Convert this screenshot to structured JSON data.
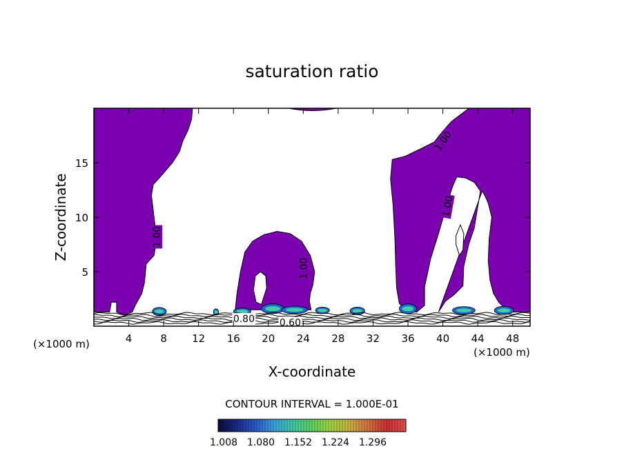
{
  "chart_data": {
    "type": "contour",
    "title": "saturation ratio",
    "xlabel": "X-coordinate",
    "ylabel": "Z-coordinate",
    "x_unit_left": "(×1000 m)",
    "x_unit_right": "(×1000 m)",
    "xlim": [
      0,
      50
    ],
    "ylim": [
      0,
      20
    ],
    "x_ticks": [
      4,
      8,
      12,
      16,
      20,
      24,
      28,
      32,
      36,
      40,
      44,
      48
    ],
    "y_ticks": [
      5,
      10,
      15
    ],
    "contour_interval_label": "CONTOUR INTERVAL = 1.000E-01",
    "contour_labels": [
      {
        "text": "1.00",
        "x": 7.2,
        "y": 8.2,
        "angle": -90
      },
      {
        "text": "1.00",
        "x": 24.0,
        "y": 5.3,
        "angle": -90
      },
      {
        "text": "1.00",
        "x": 40.5,
        "y": 11.0,
        "angle": -80
      },
      {
        "text": "1.00",
        "x": 40.0,
        "y": 17.0,
        "angle": -55
      },
      {
        "text": "0.80",
        "x": 17.2,
        "y": 0.7,
        "angle": 0
      },
      {
        "text": "0.60",
        "x": 22.5,
        "y": 0.35,
        "angle": 0
      }
    ],
    "colorbar": {
      "ticks": [
        "1.008",
        "1.080",
        "1.152",
        "1.224",
        "1.296"
      ],
      "colors": [
        "#0b0b3a",
        "#1a2a8a",
        "#2a5ac8",
        "#3aa0d8",
        "#40c8a0",
        "#60d060",
        "#a0d040",
        "#c8b040",
        "#d07040",
        "#c83030",
        "#e05050"
      ]
    },
    "fill_color": "#7b00b0",
    "regions": [
      {
        "name": "left-plume",
        "points": [
          [
            0,
            20
          ],
          [
            11.3,
            20
          ],
          [
            11.2,
            19
          ],
          [
            10.8,
            18
          ],
          [
            10.2,
            17
          ],
          [
            9.8,
            16
          ],
          [
            9.0,
            15
          ],
          [
            7.5,
            13.6
          ],
          [
            6.8,
            13.0
          ],
          [
            6.6,
            12.0
          ],
          [
            6.9,
            10.0
          ],
          [
            7.2,
            8.0
          ],
          [
            6.9,
            6.5
          ],
          [
            6.0,
            5.7
          ],
          [
            5.8,
            4.0
          ],
          [
            5.5,
            3.0
          ],
          [
            4.8,
            2.0
          ],
          [
            4.4,
            1.3
          ],
          [
            3.5,
            1.0
          ],
          [
            2.6,
            1.3
          ],
          [
            2.6,
            2.2
          ],
          [
            2.0,
            2.2
          ],
          [
            1.8,
            1.3
          ],
          [
            0,
            1.3
          ]
        ]
      },
      {
        "name": "center-cell",
        "points": [
          [
            16.2,
            1.5
          ],
          [
            16.4,
            3.0
          ],
          [
            16.8,
            5.0
          ],
          [
            17.3,
            6.8
          ],
          [
            18.2,
            7.8
          ],
          [
            19.5,
            8.4
          ],
          [
            21.0,
            8.7
          ],
          [
            22.5,
            8.5
          ],
          [
            23.8,
            7.8
          ],
          [
            24.8,
            6.5
          ],
          [
            25.3,
            5.0
          ],
          [
            25.1,
            3.8
          ],
          [
            24.8,
            3.0
          ],
          [
            24.7,
            2.3
          ],
          [
            24.9,
            1.5
          ]
        ]
      },
      {
        "name": "right-plume",
        "points": [
          [
            39.5,
            1.3
          ],
          [
            40.3,
            2.3
          ],
          [
            41.3,
            2.9
          ],
          [
            42.3,
            3.7
          ],
          [
            42.4,
            5.5
          ],
          [
            43.0,
            7.6
          ],
          [
            43.6,
            9.0
          ],
          [
            43.9,
            10.5
          ],
          [
            44.3,
            12.4
          ],
          [
            43.6,
            13.2
          ],
          [
            42.6,
            13.6
          ],
          [
            41.6,
            13.7
          ],
          [
            41.1,
            12.8
          ],
          [
            40.4,
            11.0
          ],
          [
            39.5,
            8.5
          ],
          [
            38.6,
            6.2
          ],
          [
            37.9,
            3.6
          ],
          [
            37.9,
            1.9
          ],
          [
            37.0,
            1.3
          ],
          [
            35.8,
            1.4
          ],
          [
            35.0,
            2.1
          ],
          [
            34.7,
            3.5
          ],
          [
            34.6,
            5.5
          ],
          [
            34.5,
            8.0
          ],
          [
            34.3,
            11.0
          ],
          [
            34.0,
            13.5
          ],
          [
            34.2,
            15.3
          ],
          [
            35.7,
            15.6
          ],
          [
            37.5,
            16.3
          ],
          [
            39.0,
            16.9
          ],
          [
            40.0,
            17.9
          ],
          [
            41.0,
            18.8
          ],
          [
            42.5,
            19.7
          ],
          [
            43.0,
            20
          ],
          [
            50,
            20
          ],
          [
            50,
            1.3
          ],
          [
            47.5,
            1.3
          ],
          [
            46.4,
            2.2
          ],
          [
            45.8,
            3.0
          ],
          [
            45.4,
            4.2
          ],
          [
            45.2,
            6.0
          ],
          [
            45.3,
            8.0
          ],
          [
            45.6,
            10.0
          ],
          [
            45.2,
            11.3
          ],
          [
            44.8,
            12.0
          ],
          [
            44.5,
            12.4
          ]
        ]
      }
    ],
    "holes": [
      {
        "name": "center-hole",
        "points": [
          [
            19.2,
            2.0
          ],
          [
            19.8,
            3.5
          ],
          [
            19.7,
            4.6
          ],
          [
            19.1,
            5.0
          ],
          [
            18.5,
            4.6
          ],
          [
            18.3,
            3.3
          ],
          [
            18.6,
            2.2
          ]
        ]
      },
      {
        "name": "right-hole",
        "points": [
          [
            41.5,
            8.3
          ],
          [
            42.0,
            9.3
          ],
          [
            42.4,
            8.5
          ],
          [
            42.3,
            7.0
          ],
          [
            41.9,
            6.5
          ],
          [
            41.5,
            7.5
          ]
        ]
      }
    ],
    "top_sliver": {
      "x": [
        22.3,
        27.8
      ],
      "y": 20
    }
  }
}
